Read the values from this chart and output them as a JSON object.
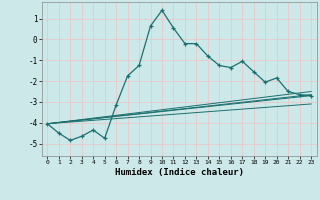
{
  "xlabel": "Humidex (Indice chaleur)",
  "background_color": "#cde8e8",
  "grid_color": "#e8c8c8",
  "line_color": "#1a7070",
  "xlim": [
    -0.5,
    23.5
  ],
  "ylim": [
    -5.6,
    1.8
  ],
  "yticks": [
    1,
    0,
    -1,
    -2,
    -3,
    -4,
    -5
  ],
  "xticks": [
    0,
    1,
    2,
    3,
    4,
    5,
    6,
    7,
    8,
    9,
    10,
    11,
    12,
    13,
    14,
    15,
    16,
    17,
    18,
    19,
    20,
    21,
    22,
    23
  ],
  "main_series_x": [
    0,
    1,
    2,
    3,
    4,
    5,
    6,
    7,
    8,
    9,
    10,
    11,
    12,
    13,
    14,
    15,
    16,
    17,
    18,
    19,
    20,
    21,
    22,
    23
  ],
  "main_series_y": [
    -4.05,
    -4.5,
    -4.85,
    -4.65,
    -4.35,
    -4.75,
    -3.15,
    -1.75,
    -1.25,
    0.65,
    1.4,
    0.55,
    -0.2,
    -0.2,
    -0.8,
    -1.25,
    -1.35,
    -1.05,
    -1.55,
    -2.05,
    -1.85,
    -2.5,
    -2.65,
    -2.7
  ],
  "line2_x": [
    0,
    23
  ],
  "line2_y": [
    -4.05,
    -2.5
  ],
  "line3_x": [
    0,
    23
  ],
  "line3_y": [
    -4.05,
    -2.65
  ],
  "line4_x": [
    0,
    23
  ],
  "line4_y": [
    -4.05,
    -2.7
  ],
  "line5_x": [
    0,
    23
  ],
  "line5_y": [
    -4.05,
    -3.1
  ]
}
